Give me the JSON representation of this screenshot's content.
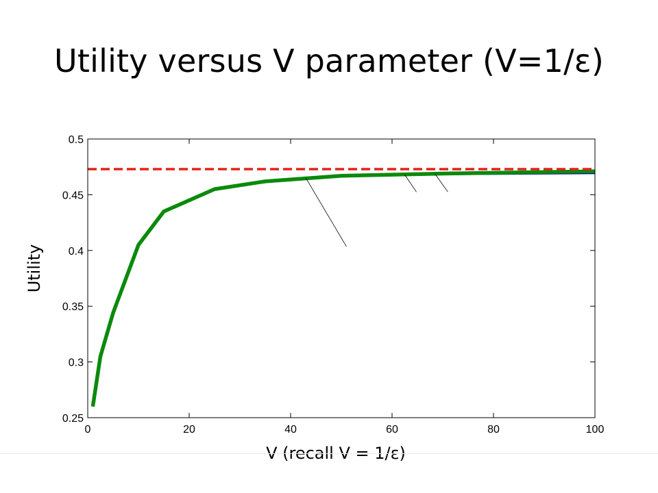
{
  "slide": {
    "title": "Utility versus V parameter (V=1/ε)"
  },
  "chart_data": {
    "type": "line",
    "xlabel": "V   (recall V = 1/ε)",
    "ylabel": "Utility",
    "xlim": [
      0,
      100
    ],
    "ylim": [
      0.25,
      0.5
    ],
    "x_ticks": [
      0,
      20,
      40,
      60,
      80,
      100
    ],
    "x_tick_labels": [
      "0",
      "20",
      "40",
      "60",
      "80",
      "100"
    ],
    "y_ticks": [
      0.25,
      0.3,
      0.35,
      0.4,
      0.45,
      0.5
    ],
    "y_tick_labels": [
      "0.25",
      "0.3",
      "0.35",
      "0.4",
      "0.45",
      "0.5"
    ],
    "grid": false,
    "series": [
      {
        "x": [
          1,
          2.5,
          5,
          10,
          15,
          25,
          35,
          50,
          70,
          100
        ],
        "y": [
          0.26,
          0.306,
          0.345,
          0.405,
          0.435,
          0.455,
          0.462,
          0.467,
          0.468,
          0.469
        ],
        "color": "#0000aa",
        "style": "thin-solid"
      },
      {
        "x": [
          1,
          2.5,
          5,
          10,
          15,
          25,
          35,
          50,
          70,
          100
        ],
        "y": [
          0.26,
          0.305,
          0.344,
          0.405,
          0.435,
          0.455,
          0.462,
          0.467,
          0.469,
          0.471
        ],
        "color": "#0b8a0b",
        "style": "thick-solid"
      },
      {
        "x": [
          0,
          100
        ],
        "y": [
          0.473,
          0.473
        ],
        "color": "#e2231a",
        "style": "thick-dashed"
      }
    ],
    "annotation_lines": [
      {
        "from": [
          43,
          0.465
        ],
        "to": [
          51,
          0.4035
        ]
      },
      {
        "from": [
          62.5,
          0.468
        ],
        "to": [
          64.8,
          0.4525
        ]
      },
      {
        "from": [
          68.5,
          0.4685
        ],
        "to": [
          71,
          0.4525
        ]
      }
    ]
  }
}
